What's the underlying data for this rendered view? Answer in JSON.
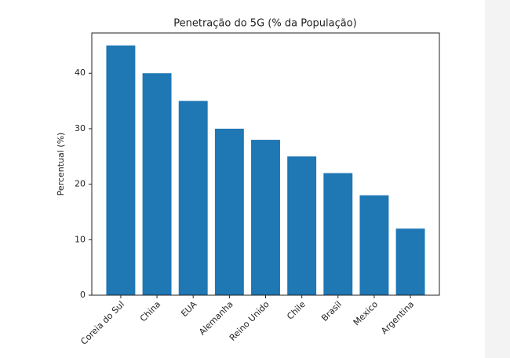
{
  "chart_data": {
    "type": "bar",
    "title": "Penetração do 5G (% da População)",
    "y_label": "Percentual (%)",
    "categories": [
      "Coreia do Sul",
      "China",
      "EUA",
      "Alemanha",
      "Reino Unido",
      "Chile",
      "Brasil",
      "Mexico",
      "Argentina"
    ],
    "values": [
      45,
      40,
      35,
      30,
      28,
      25,
      22,
      18,
      12
    ],
    "color": "#1f77b4",
    "ylim": [
      0,
      47.25
    ],
    "yticks": [
      0,
      10,
      20,
      30,
      40
    ],
    "grid": false
  }
}
